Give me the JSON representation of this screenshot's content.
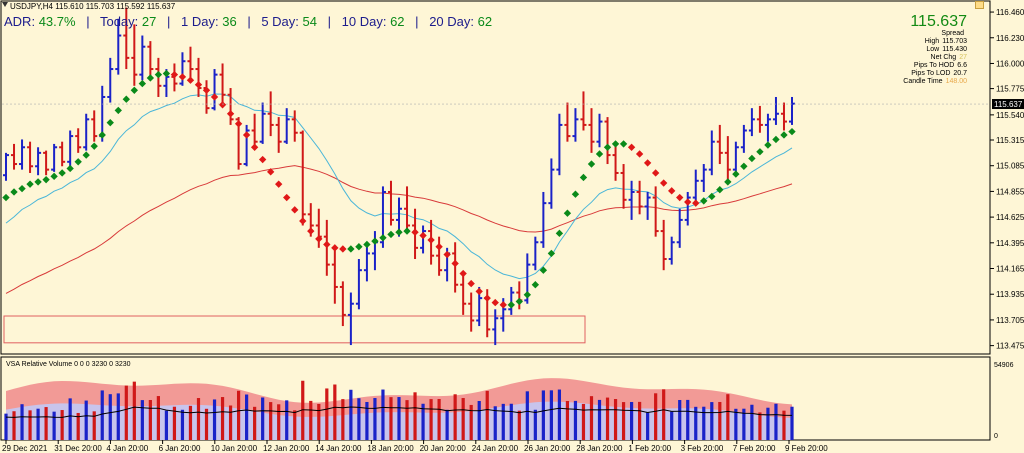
{
  "window": {
    "title": "USDJPY,H4 115.610 115.703 115.592 115.637"
  },
  "stats": {
    "adr_label": "ADR:",
    "adr_value": "43.7%",
    "today_label": "Today:",
    "today_value": "27",
    "d1_label": "1 Day:",
    "d1_value": "36",
    "d5_label": "5 Day:",
    "d5_value": "54",
    "d10_label": "10 Day:",
    "d10_value": "62",
    "d20_label": "20 Day:",
    "d20_value": "62"
  },
  "info": {
    "price": "115.637",
    "spread_label": "Spread",
    "spread_value": "",
    "high_label": "High",
    "high_value": "115.703",
    "low_label": "Low",
    "low_value": "115.430",
    "netchg_label": "Net Chg",
    "netchg_value": "27",
    "hod_label": "Pips To HOD",
    "hod_value": "6.6",
    "lod_label": "Pips To LOD",
    "lod_value": "20.7",
    "candle_label": "Candle Time",
    "candle_value": "148.00"
  },
  "volume_panel": {
    "title": "VSA Relative Volume 0 0 0 3230 0 3230",
    "max_label": "54906",
    "min_label": "0"
  },
  "colors": {
    "background": "#fef6d6",
    "bull_candle": "#1a22c8",
    "bear_candle": "#d01818",
    "ma_up": "#0a8a1a",
    "ma_down": "#e01818",
    "ma_slow": "#d83a3a",
    "ma_mid": "#4ab6d8",
    "vol_band_outer": "#f29a96",
    "vol_band_inner": "#c8c4ec",
    "current_price_tag": "#000000"
  },
  "chart_data": {
    "type": "candlestick",
    "symbol": "USDJPY",
    "timeframe": "H4",
    "ylim": [
      113.4,
      116.55
    ],
    "y_ticks": [
      "116.460",
      "116.230",
      "116.000",
      "115.775",
      "115.540",
      "115.315",
      "115.085",
      "114.855",
      "114.625",
      "114.395",
      "114.165",
      "113.935",
      "113.705",
      "113.475"
    ],
    "current_price": "115.637",
    "x_ticks": [
      "29 Dec 2021",
      "31 Dec 20:00",
      "4 Jan 20:00",
      "6 Jan 20:00",
      "10 Jan 20:00",
      "12 Jan 20:00",
      "14 Jan 20:00",
      "18 Jan 20:00",
      "20 Jan 20:00",
      "24 Jan 20:00",
      "26 Jan 20:00",
      "28 Jan 20:00",
      "1 Feb 20:00",
      "3 Feb 20:00",
      "7 Feb 20:00",
      "9 Feb 20:00"
    ],
    "ohlc": [
      [
        115.0,
        115.2,
        114.95,
        115.18
      ],
      [
        115.18,
        115.28,
        115.05,
        115.1
      ],
      [
        115.1,
        115.32,
        115.05,
        115.25
      ],
      [
        115.25,
        115.3,
        115.02,
        115.08
      ],
      [
        115.08,
        115.25,
        115.0,
        115.2
      ],
      [
        115.2,
        115.22,
        115.0,
        115.05
      ],
      [
        115.05,
        115.28,
        115.03,
        115.25
      ],
      [
        115.25,
        115.3,
        115.08,
        115.12
      ],
      [
        115.12,
        115.4,
        115.08,
        115.35
      ],
      [
        115.35,
        115.42,
        115.2,
        115.25
      ],
      [
        115.25,
        115.55,
        115.22,
        115.5
      ],
      [
        115.5,
        115.58,
        115.3,
        115.35
      ],
      [
        115.35,
        115.8,
        115.3,
        115.7
      ],
      [
        115.7,
        116.05,
        115.65,
        115.95
      ],
      [
        115.95,
        116.4,
        115.9,
        116.25
      ],
      [
        116.25,
        116.5,
        115.95,
        116.05
      ],
      [
        116.05,
        116.35,
        115.8,
        115.9
      ],
      [
        115.9,
        116.25,
        115.85,
        116.15
      ],
      [
        116.15,
        116.2,
        115.85,
        115.95
      ],
      [
        115.95,
        116.05,
        115.7,
        115.8
      ],
      [
        115.8,
        115.95,
        115.7,
        115.88
      ],
      [
        115.88,
        116.0,
        115.75,
        115.82
      ],
      [
        115.82,
        116.1,
        115.8,
        116.02
      ],
      [
        116.02,
        116.15,
        115.85,
        115.95
      ],
      [
        115.95,
        116.05,
        115.7,
        115.78
      ],
      [
        115.78,
        115.85,
        115.55,
        115.6
      ],
      [
        115.6,
        115.95,
        115.58,
        115.9
      ],
      [
        115.9,
        116.0,
        115.65,
        115.72
      ],
      [
        115.72,
        115.78,
        115.45,
        115.5
      ],
      [
        115.5,
        115.52,
        115.05,
        115.1
      ],
      [
        115.1,
        115.45,
        115.08,
        115.4
      ],
      [
        115.4,
        115.55,
        115.25,
        115.3
      ],
      [
        115.3,
        115.65,
        115.28,
        115.55
      ],
      [
        115.55,
        115.75,
        115.35,
        115.45
      ],
      [
        115.45,
        115.52,
        115.2,
        115.3
      ],
      [
        115.3,
        115.6,
        115.28,
        115.5
      ],
      [
        115.5,
        115.58,
        115.3,
        115.38
      ],
      [
        115.38,
        115.4,
        114.55,
        114.65
      ],
      [
        114.65,
        114.75,
        114.45,
        114.55
      ],
      [
        114.55,
        114.7,
        114.35,
        114.45
      ],
      [
        114.45,
        114.6,
        114.1,
        114.2
      ],
      [
        114.2,
        114.35,
        113.85,
        114.0
      ],
      [
        114.0,
        114.05,
        113.65,
        113.75
      ],
      [
        113.75,
        113.95,
        113.48,
        113.85
      ],
      [
        113.85,
        114.25,
        113.8,
        114.15
      ],
      [
        114.15,
        114.4,
        114.05,
        114.3
      ],
      [
        114.3,
        114.5,
        114.15,
        114.4
      ],
      [
        114.4,
        114.9,
        114.35,
        114.85
      ],
      [
        114.85,
        114.95,
        114.55,
        114.6
      ],
      [
        114.6,
        114.8,
        114.45,
        114.7
      ],
      [
        114.7,
        114.9,
        114.5,
        114.55
      ],
      [
        114.55,
        114.7,
        114.25,
        114.35
      ],
      [
        114.35,
        114.55,
        114.3,
        114.5
      ],
      [
        114.5,
        114.6,
        114.2,
        114.28
      ],
      [
        114.28,
        114.45,
        114.1,
        114.15
      ],
      [
        114.15,
        114.35,
        114.05,
        114.3
      ],
      [
        114.3,
        114.4,
        113.95,
        114.02
      ],
      [
        114.02,
        114.1,
        113.75,
        113.85
      ],
      [
        113.85,
        113.95,
        113.6,
        113.7
      ],
      [
        113.7,
        114.0,
        113.65,
        113.9
      ],
      [
        113.9,
        113.98,
        113.55,
        113.62
      ],
      [
        113.62,
        113.8,
        113.48,
        113.72
      ],
      [
        113.72,
        113.9,
        113.6,
        113.8
      ],
      [
        113.8,
        114.0,
        113.75,
        113.95
      ],
      [
        113.95,
        114.05,
        113.8,
        113.88
      ],
      [
        113.88,
        114.3,
        113.85,
        114.2
      ],
      [
        114.2,
        114.45,
        114.15,
        114.4
      ],
      [
        114.4,
        114.85,
        114.35,
        114.75
      ],
      [
        114.75,
        115.15,
        114.7,
        115.05
      ],
      [
        115.05,
        115.55,
        115.0,
        115.45
      ],
      [
        115.45,
        115.65,
        115.3,
        115.35
      ],
      [
        115.35,
        115.6,
        115.3,
        115.5
      ],
      [
        115.5,
        115.75,
        115.4,
        115.45
      ],
      [
        115.45,
        115.6,
        115.2,
        115.3
      ],
      [
        115.3,
        115.55,
        115.25,
        115.48
      ],
      [
        115.48,
        115.52,
        115.1,
        115.18
      ],
      [
        115.18,
        115.3,
        114.95,
        115.02
      ],
      [
        115.02,
        115.1,
        114.7,
        114.78
      ],
      [
        114.78,
        114.95,
        114.6,
        114.85
      ],
      [
        114.85,
        114.95,
        114.65,
        114.72
      ],
      [
        114.72,
        114.85,
        114.6,
        114.8
      ],
      [
        114.8,
        114.9,
        114.45,
        114.5
      ],
      [
        114.5,
        114.6,
        114.15,
        114.25
      ],
      [
        114.25,
        114.45,
        114.2,
        114.4
      ],
      [
        114.4,
        114.7,
        114.35,
        114.6
      ],
      [
        114.6,
        114.85,
        114.55,
        114.8
      ],
      [
        114.8,
        115.05,
        114.75,
        114.95
      ],
      [
        114.95,
        115.1,
        114.85,
        115.05
      ],
      [
        115.05,
        115.4,
        115.0,
        115.3
      ],
      [
        115.3,
        115.45,
        115.1,
        115.2
      ],
      [
        115.2,
        115.35,
        114.95,
        115.05
      ],
      [
        115.05,
        115.3,
        115.0,
        115.25
      ],
      [
        115.25,
        115.45,
        115.2,
        115.4
      ],
      [
        115.4,
        115.6,
        115.35,
        115.5
      ],
      [
        115.5,
        115.62,
        115.38,
        115.45
      ],
      [
        115.45,
        115.55,
        115.3,
        115.5
      ],
      [
        115.5,
        115.7,
        115.45,
        115.55
      ],
      [
        115.55,
        115.65,
        115.4,
        115.48
      ],
      [
        115.48,
        115.7,
        115.45,
        115.64
      ]
    ],
    "series": [
      {
        "name": "",
        "values": [
          114.8,
          114.85,
          114.88,
          114.92,
          114.94,
          114.96,
          114.99,
          115.02,
          115.06,
          115.12,
          115.18,
          115.26,
          115.36,
          115.47,
          115.58,
          115.68,
          115.76,
          115.82,
          115.87,
          115.9,
          115.91,
          115.9,
          115.88,
          115.85,
          115.81,
          115.76,
          115.7,
          115.63,
          115.55,
          115.46,
          115.36,
          115.25,
          115.14,
          115.03,
          114.92,
          114.8,
          114.69,
          114.59,
          114.5,
          114.43,
          114.38,
          114.35,
          114.34,
          114.34,
          114.36,
          114.38,
          114.41,
          114.44,
          114.47,
          114.49,
          114.5,
          114.49,
          114.46,
          114.42,
          114.36,
          114.29,
          114.21,
          114.12,
          114.03,
          113.96,
          113.9,
          113.86,
          113.84,
          113.84,
          113.87,
          113.93,
          114.02,
          114.15,
          114.3,
          114.48,
          114.66,
          114.83,
          114.98,
          115.1,
          115.19,
          115.25,
          115.28,
          115.28,
          115.25,
          115.19,
          115.11,
          115.02,
          114.93,
          114.86,
          114.8,
          114.76,
          114.75,
          114.77,
          114.81,
          114.87,
          114.94,
          115.01,
          115.08,
          115.15,
          115.21,
          115.27,
          115.32,
          115.36,
          115.39
        ]
      }
    ]
  }
}
